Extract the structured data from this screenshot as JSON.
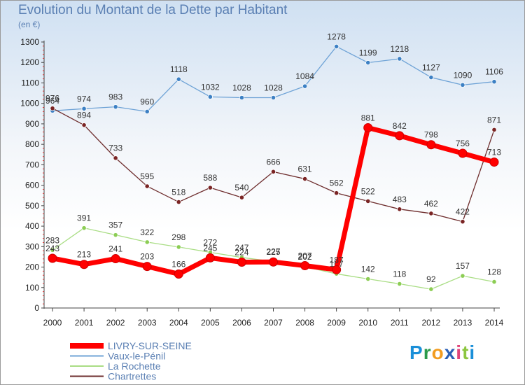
{
  "chart_data": {
    "type": "line",
    "title": "Evolution du Montant de la Dette par Habitant",
    "subtitle": "(en €)",
    "x": [
      "2000",
      "2001",
      "2002",
      "2003",
      "2004",
      "2005",
      "2006",
      "2007",
      "2008",
      "2009",
      "2010",
      "2011",
      "2012",
      "2013",
      "2014"
    ],
    "ylim": [
      0,
      1300
    ],
    "yticks": [
      0,
      100,
      200,
      300,
      400,
      500,
      600,
      700,
      800,
      900,
      1000,
      1100,
      1200,
      1300
    ],
    "grid": false,
    "legend_position": "bottom-left",
    "series": [
      {
        "name": "LIVRY-SUR-SEINE",
        "color": "#ff0000",
        "values": [
          243,
          213,
          241,
          203,
          166,
          245,
          224,
          225,
          207,
          187,
          881,
          842,
          798,
          756,
          713
        ]
      },
      {
        "name": "Vaux-le-Pénil",
        "color": "#6fa3d6",
        "marker": "#3c80c4",
        "values": [
          964,
          974,
          983,
          960,
          1118,
          1032,
          1028,
          1028,
          1084,
          1278,
          1199,
          1218,
          1127,
          1090,
          1106
        ]
      },
      {
        "name": "La Rochette",
        "color": "#a9dd84",
        "marker": "#8ccd54",
        "values": [
          283,
          391,
          357,
          322,
          298,
          272,
          247,
          227,
          202,
          167,
          142,
          118,
          92,
          157,
          128
        ]
      },
      {
        "name": "Chartrettes",
        "color": "#6e2d2d",
        "marker": "#7a2424",
        "values": [
          976,
          894,
          733,
          595,
          518,
          588,
          540,
          666,
          631,
          562,
          522,
          483,
          462,
          422,
          871
        ]
      }
    ]
  },
  "brand": {
    "letters": [
      "P",
      "r",
      "o",
      "x",
      "i",
      "t",
      "i"
    ]
  }
}
